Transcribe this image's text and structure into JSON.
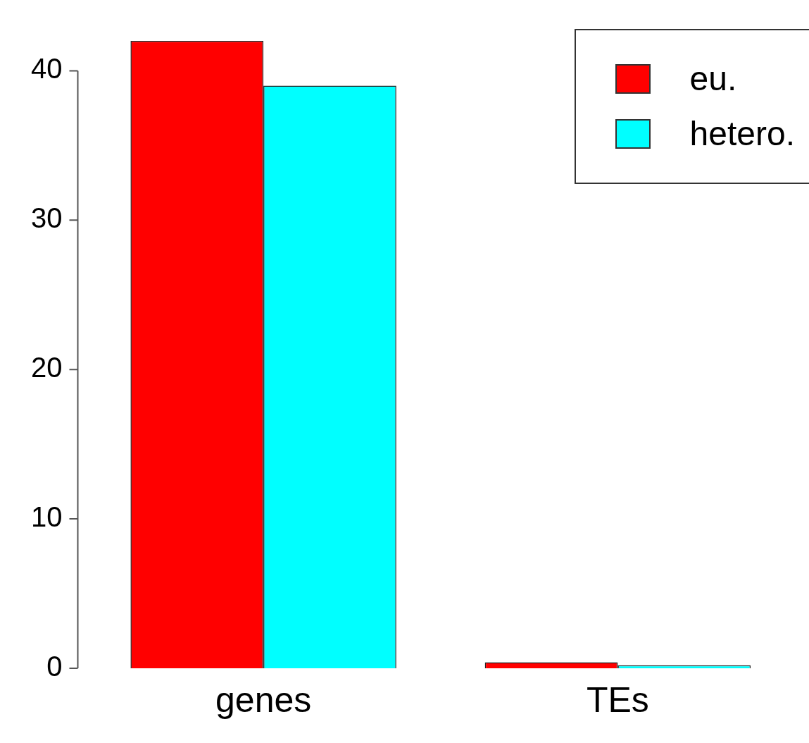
{
  "chart_data": {
    "type": "bar",
    "categories": [
      "genes",
      "TEs"
    ],
    "series": [
      {
        "name": "eu.",
        "color": "#ff0000",
        "values": [
          42,
          0.4
        ]
      },
      {
        "name": "hetero.",
        "color": "#00ffff",
        "values": [
          39,
          0.2
        ]
      }
    ],
    "ylim": [
      0,
      42
    ],
    "yticks": [
      0,
      10,
      20,
      30,
      40
    ],
    "grid": false,
    "legend": "top right"
  }
}
